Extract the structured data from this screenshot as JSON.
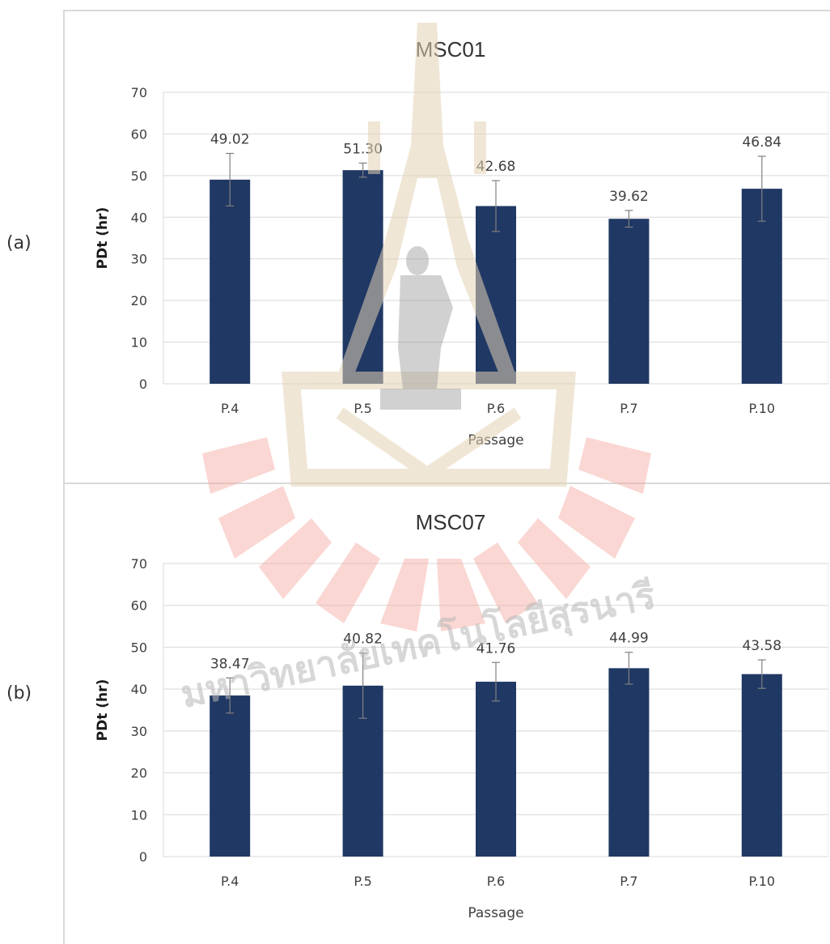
{
  "panels": [
    {
      "label": "(a)"
    },
    {
      "label": "(b)"
    }
  ],
  "chart_data": [
    {
      "type": "bar",
      "title": "MSC01",
      "xlabel": "Passage",
      "ylabel": "PDt (hr)",
      "categories": [
        "P.4",
        "P.5",
        "P.6",
        "P.7",
        "P.10"
      ],
      "values": [
        49.02,
        51.3,
        42.68,
        39.62,
        46.84
      ],
      "value_labels": [
        "49.02",
        "51.30",
        "42.68",
        "39.62",
        "46.84"
      ],
      "error_bars": [
        6.3,
        1.7,
        6.1,
        2.0,
        7.8
      ],
      "ylim": [
        0,
        70
      ],
      "yticks": [
        0,
        10,
        20,
        30,
        40,
        50,
        60,
        70
      ],
      "grid": true,
      "bar_color": "#203864"
    },
    {
      "type": "bar",
      "title": "MSC07",
      "xlabel": "Passage",
      "ylabel": "PDt (hr)",
      "categories": [
        "P.4",
        "P.5",
        "P.6",
        "P.7",
        "P.10"
      ],
      "values": [
        38.47,
        40.82,
        41.76,
        44.99,
        43.58
      ],
      "value_labels": [
        "38.47",
        "40.82",
        "41.76",
        "44.99",
        "43.58"
      ],
      "error_bars": [
        4.2,
        7.8,
        4.6,
        3.8,
        3.4
      ],
      "ylim": [
        0,
        70
      ],
      "yticks": [
        0,
        10,
        20,
        30,
        40,
        50,
        60,
        70
      ],
      "grid": true,
      "bar_color": "#203864"
    }
  ],
  "watermark": {
    "text": "มหาวิทยาลัยเทคโนโลยีสุรนารี",
    "colors": {
      "tower": "#e8dcc6",
      "rays": "#f8b4ae",
      "figure": "#bbbbbb",
      "text": "#bfbfbf"
    }
  }
}
